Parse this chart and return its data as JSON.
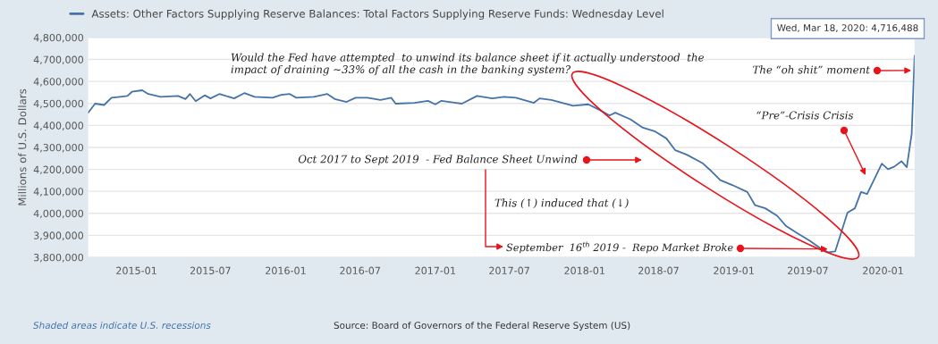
{
  "chart_data": {
    "type": "line",
    "ylabel": "Millions of U.S. Dollars",
    "legend": "top",
    "x": [
      "2014-09-05",
      "2014-09-22",
      "2014-10-14",
      "2014-11-01",
      "2014-11-22",
      "2014-12-10",
      "2014-12-21",
      "2015-01-15",
      "2015-01-30",
      "2015-03-01",
      "2015-04-13",
      "2015-05-01",
      "2015-05-12",
      "2015-05-26",
      "2015-06-17",
      "2015-07-01",
      "2015-07-23",
      "2015-08-28",
      "2015-09-22",
      "2015-10-17",
      "2015-11-30",
      "2015-12-21",
      "2016-01-11",
      "2016-01-27",
      "2016-03-10",
      "2016-04-12",
      "2016-04-30",
      "2016-05-29",
      "2016-06-20",
      "2016-07-19",
      "2016-08-20",
      "2016-09-15",
      "2016-09-26",
      "2016-11-11",
      "2016-12-14",
      "2017-01-01",
      "2017-01-16",
      "2017-03-07",
      "2017-04-13",
      "2017-05-20",
      "2017-06-18",
      "2017-07-17",
      "2017-08-30",
      "2017-09-13",
      "2017-10-12",
      "2017-12-04",
      "2018-01-10",
      "2018-02-08",
      "2018-03-03",
      "2018-03-17",
      "2018-04-23",
      "2018-05-22",
      "2018-06-21",
      "2018-07-20",
      "2018-08-11",
      "2018-09-09",
      "2018-10-16",
      "2018-11-07",
      "2018-11-29",
      "2018-12-28",
      "2019-02-03",
      "2019-02-22",
      "2019-03-19",
      "2019-04-17",
      "2019-05-09",
      "2019-06-07",
      "2019-07-06",
      "2019-08-01",
      "2019-08-19",
      "2019-09-06",
      "2019-09-21",
      "2019-10-06",
      "2019-10-24",
      "2019-11-08",
      "2019-11-23",
      "2019-12-29",
      "2020-01-13",
      "2020-01-28",
      "2020-02-15",
      "2020-02-28",
      "2020-03-11",
      "2020-03-18"
    ],
    "series": [
      {
        "name": "Assets: Other Factors Supplying Reserve Balances: Total Factors Supplying Reserve Funds: Wednesday Level",
        "color": "#4572a7",
        "values": [
          4458000,
          4499000,
          4493000,
          4526000,
          4530000,
          4534000,
          4553000,
          4560000,
          4543000,
          4530000,
          4534000,
          4520000,
          4543000,
          4510000,
          4537000,
          4523000,
          4543000,
          4523000,
          4547000,
          4530000,
          4526000,
          4539000,
          4543000,
          4526000,
          4530000,
          4543000,
          4520000,
          4507000,
          4526000,
          4526000,
          4516000,
          4526000,
          4499000,
          4503000,
          4512000,
          4496000,
          4512000,
          4499000,
          4534000,
          4523000,
          4530000,
          4526000,
          4503000,
          4523000,
          4516000,
          4489000,
          4496000,
          4469000,
          4445000,
          4458000,
          4428000,
          4391000,
          4374000,
          4341000,
          4287000,
          4266000,
          4229000,
          4192000,
          4151000,
          4129000,
          4097000,
          4037000,
          4023000,
          3989000,
          3942000,
          3908000,
          3875000,
          3841000,
          3823000,
          3827000,
          3915000,
          4003000,
          4023000,
          4097000,
          4088000,
          4226000,
          4201000,
          4212000,
          4237000,
          4210000,
          4361000,
          4716488
        ]
      }
    ],
    "xlim": [
      "2014-09-05",
      "2020-03-18"
    ],
    "xticks": [
      "2015-01",
      "2015-07",
      "2016-01",
      "2016-07",
      "2017-01",
      "2017-07",
      "2018-01",
      "2018-07",
      "2019-01",
      "2019-07",
      "2020-01"
    ],
    "ylim": [
      3800000,
      4800000
    ],
    "yticks": [
      {
        "value": 3800000,
        "label": "3,800,000"
      },
      {
        "value": 3900000,
        "label": "3,900,000"
      },
      {
        "value": 4000000,
        "label": "4,000,000"
      },
      {
        "value": 4100000,
        "label": "4,100,000"
      },
      {
        "value": 4200000,
        "label": "4,200,000"
      },
      {
        "value": 4300000,
        "label": "4,300,000"
      },
      {
        "value": 4400000,
        "label": "4,400,000"
      },
      {
        "value": 4500000,
        "label": "4,500,000"
      },
      {
        "value": 4600000,
        "label": "4,600,000"
      },
      {
        "value": 4700000,
        "label": "4,700,000"
      },
      {
        "value": 4800000,
        "label": "4,800,000"
      }
    ],
    "grid": "y",
    "marker": "none",
    "line_style": "solid",
    "annotations": [
      "Would the Fed have attempted  to unwind its balance sheet if it actually understood  the\nimpact of draining ~33% of all the cash in the banking system?",
      "This (↑) induced that (↓)",
      "Shaded areas indicate U.S. recessions",
      "Source: Board of Governors of the Federal Reserve System (US)",
      {
        "text": "The “oh shit” moment",
        "x": "2020-03-16",
        "y": 4650000
      },
      "“Pre”-Crisis Crisis",
      "Oct 2017 to Sept 2019  - Fed Balance Sheet Unwind",
      {
        "text": "September  16$^{th}$ 2019 -  Repo Market Broke",
        "x": "2019-08-25",
        "y": 3838000
      },
      {
        "text": "Wed, Mar 18, 2020: 4,716,488",
        "x": "2020-03-18",
        "y": 4716488
      }
    ]
  }
}
